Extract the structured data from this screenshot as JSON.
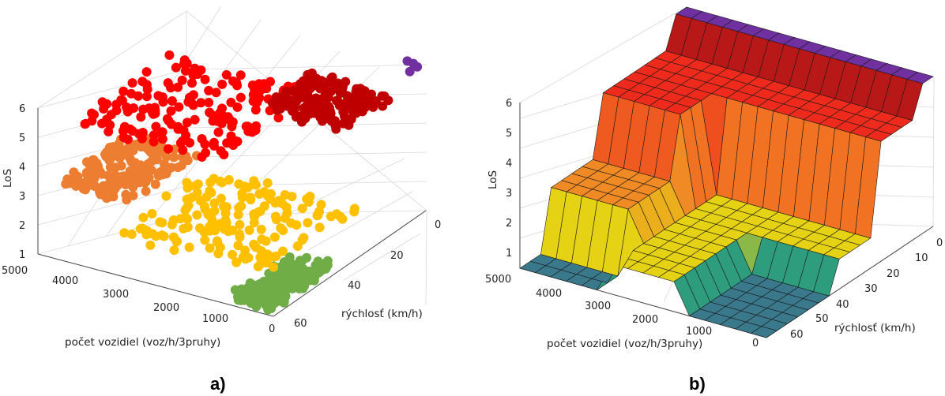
{
  "panels": [
    {
      "label": "a)"
    },
    {
      "label": "b)"
    }
  ],
  "chart_data": [
    {
      "type": "scatter",
      "panel": "a)",
      "title": "",
      "xlabel": "rýchlosť (km/h)",
      "ylabel": "počet vozidiel (voz/h/3pruhy)",
      "zlabel": "LoS",
      "speed_ticks": [
        "0",
        "20",
        "40",
        "60"
      ],
      "flow_ticks": [
        "5000",
        "4000",
        "3000",
        "2000",
        "1000",
        "0"
      ],
      "los_ticks": [
        "1",
        "2",
        "3",
        "4",
        "5",
        "6"
      ],
      "speed_range": [
        0,
        65
      ],
      "flow_range": [
        0,
        5000
      ],
      "los_range": [
        1,
        6
      ],
      "grid": true,
      "series": [
        {
          "los": 1,
          "color": "#70ad47",
          "clusters": [
            {
              "speed": [
                36,
                62
              ],
              "flow": [
                200,
                1100
              ]
            }
          ]
        },
        {
          "los": 2,
          "color": "#ffc000",
          "clusters": [
            {
              "speed": [
                20,
                60
              ],
              "flow": [
                500,
                3600
              ]
            }
          ]
        },
        {
          "los": 3,
          "color": "#ed7d31",
          "clusters": [
            {
              "speed": [
                27,
                58
              ],
              "flow": [
                3500,
                5000
              ]
            }
          ]
        },
        {
          "los": 5,
          "color": "#ff0000",
          "clusters": [
            {
              "speed": [
                12,
                55
              ],
              "flow": [
                1800,
                4800
              ]
            }
          ]
        },
        {
          "los": 5,
          "color": "#c00000",
          "clusters": [
            {
              "speed": [
                5,
                25
              ],
              "flow": [
                500,
                2200
              ]
            }
          ]
        },
        {
          "los": 6,
          "color": "#7030a0",
          "clusters": [
            {
              "speed": [
                1,
                4
              ],
              "flow": [
                0,
                300
              ]
            }
          ]
        }
      ]
    },
    {
      "type": "surface",
      "panel": "b)",
      "title": "",
      "xlabel": "rýchlosť (km/h)",
      "ylabel": "počet vozidiel (voz/h/3pruhy)",
      "zlabel": "LoS",
      "speed_ticks": [
        "0",
        "10",
        "20",
        "30",
        "40",
        "50",
        "60"
      ],
      "flow_ticks": [
        "5000",
        "4000",
        "3000",
        "2000",
        "1000",
        "0"
      ],
      "los_ticks": [
        "1",
        "2",
        "3",
        "4",
        "5",
        "6"
      ],
      "speed_range": [
        0,
        65
      ],
      "flow_range": [
        0,
        5000
      ],
      "los_range": [
        1,
        6
      ],
      "grid": true
    }
  ]
}
